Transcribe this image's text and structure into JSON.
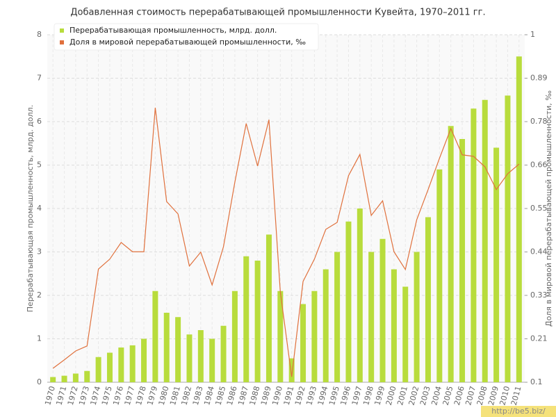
{
  "chart_data": {
    "type": "bar-line",
    "title": "Добавленная стоимость перерабатывающей промышленности Кувейта, 1970–2011 гг.",
    "y_label": "Перерабатывающая промышленность, млрд. долл.",
    "y2_label": "Доля в мировой перерабатывающей промышленности, ‰",
    "categories": [
      "1970",
      "1971",
      "1972",
      "1973",
      "1974",
      "1975",
      "1976",
      "1977",
      "1978",
      "1979",
      "1980",
      "1981",
      "1982",
      "1983",
      "1984",
      "1985",
      "1986",
      "1987",
      "1988",
      "1989",
      "1990",
      "1991",
      "1992",
      "1993",
      "1994",
      "1995",
      "1996",
      "1997",
      "1998",
      "1999",
      "2000",
      "2001",
      "2002",
      "2003",
      "2004",
      "2005",
      "2006",
      "2007",
      "2008",
      "2009",
      "2010",
      "2011"
    ],
    "series": [
      {
        "name": "Перерабатывающая промышленность, млрд. долл.",
        "type": "bar",
        "color": "#b8dc3c",
        "values": [
          0.12,
          0.15,
          0.2,
          0.26,
          0.58,
          0.68,
          0.8,
          0.85,
          1.0,
          2.1,
          1.6,
          1.5,
          1.1,
          1.2,
          1.0,
          1.3,
          2.1,
          2.9,
          2.8,
          3.4,
          2.1,
          0.55,
          1.8,
          2.1,
          2.6,
          3.0,
          3.7,
          4.0,
          3.0,
          3.3,
          2.6,
          2.2,
          3.0,
          3.8,
          4.9,
          5.9,
          5.6,
          6.3,
          6.5,
          5.4,
          6.6,
          7.5
        ]
      },
      {
        "name": "Доля в мировой перерабатывающей промышленности, ‰",
        "type": "line",
        "axis": "y2",
        "color": "#e0703c",
        "values": [
          0.136,
          0.158,
          0.181,
          0.194,
          0.393,
          0.419,
          0.462,
          0.438,
          0.438,
          0.811,
          0.568,
          0.536,
          0.401,
          0.437,
          0.352,
          0.451,
          0.618,
          0.77,
          0.66,
          0.78,
          0.334,
          0.114,
          0.361,
          0.419,
          0.496,
          0.514,
          0.635,
          0.69,
          0.532,
          0.57,
          0.438,
          0.392,
          0.521,
          0.599,
          0.68,
          0.757,
          0.689,
          0.685,
          0.658,
          0.599,
          0.64,
          0.665
        ]
      }
    ],
    "ylim": [
      0,
      8
    ],
    "yticks": [
      0,
      1,
      2,
      3,
      4,
      5,
      6,
      7,
      8
    ],
    "y2lim": [
      0.1,
      1
    ],
    "y2ticks": [
      0.1,
      {
        "value": 0.2125,
        "label": "0.21"
      },
      {
        "value": 0.325,
        "label": "0.33"
      },
      {
        "value": 0.4375,
        "label": "0.44"
      },
      0.55,
      {
        "value": 0.6625,
        "label": "0.66"
      },
      {
        "value": 0.775,
        "label": "0.78"
      },
      {
        "value": 0.8875,
        "label": "0.89"
      },
      1
    ],
    "grid": true,
    "legend": "top-left",
    "watermark": "http://be5.biz/"
  }
}
